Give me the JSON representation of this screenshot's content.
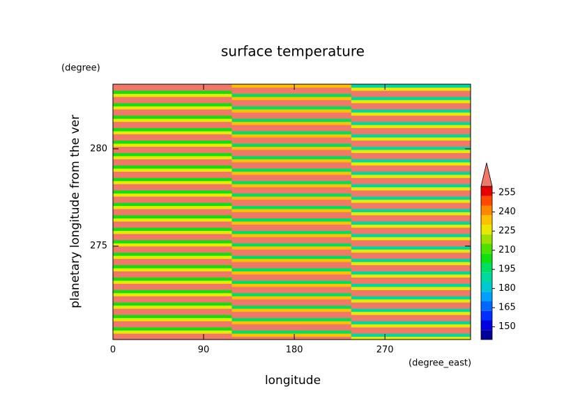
{
  "chart_data": {
    "type": "heatmap",
    "title": "surface temperature",
    "xlabel": "longitude",
    "xunit": "(degree_east)",
    "ylabel": "planetary longitude from the ver",
    "yunit": "(degree)",
    "xlim": [
      0,
      355
    ],
    "xticks": [
      0,
      90,
      180,
      270
    ],
    "ylim": [
      270.2,
      283.32
    ],
    "yticks": [
      275,
      280
    ],
    "x": [
      59,
      177,
      296
    ],
    "y": [
      270.28,
      270.44,
      270.6,
      270.76,
      270.92,
      271.08,
      271.24,
      271.4,
      271.56,
      271.72,
      271.88,
      272.04,
      272.2,
      272.36,
      272.52,
      272.68,
      272.84,
      273,
      273.16,
      273.32,
      273.48,
      273.64,
      273.8,
      273.96,
      274.12,
      274.28,
      274.44,
      274.6,
      274.76,
      274.92,
      275.08,
      275.24,
      275.4,
      275.56,
      275.72,
      275.88,
      276.04,
      276.2,
      276.36,
      276.52,
      276.68,
      276.84,
      277,
      277.16,
      277.32,
      277.48,
      277.64,
      277.8,
      277.96,
      278.12,
      278.28,
      278.44,
      278.6,
      278.76,
      278.92,
      279.08,
      279.24,
      279.4,
      279.56,
      279.72,
      279.88,
      280.04,
      280.2,
      280.36,
      280.52,
      280.68,
      280.84,
      281,
      281.16,
      281.32,
      281.48,
      281.64,
      281.8,
      281.96,
      282.12,
      282.28,
      282.44,
      282.6,
      282.76,
      282.92,
      283.08,
      283.24
    ],
    "z": [
      [
        265,
        262,
        225
      ],
      [
        265,
        230,
        185
      ],
      [
        228,
        198,
        265
      ],
      [
        205,
        265,
        262
      ],
      [
        265,
        262,
        225
      ],
      [
        265,
        230,
        185
      ],
      [
        228,
        198,
        265
      ],
      [
        205,
        265,
        262
      ],
      [
        265,
        262,
        225
      ],
      [
        265,
        230,
        185
      ],
      [
        228,
        198,
        265
      ],
      [
        205,
        265,
        262
      ],
      [
        265,
        262,
        225
      ],
      [
        265,
        230,
        185
      ],
      [
        228,
        198,
        265
      ],
      [
        205,
        265,
        262
      ],
      [
        265,
        262,
        225
      ],
      [
        265,
        230,
        185
      ],
      [
        228,
        198,
        265
      ],
      [
        205,
        265,
        262
      ],
      [
        265,
        262,
        225
      ],
      [
        265,
        230,
        185
      ],
      [
        228,
        198,
        265
      ],
      [
        205,
        265,
        262
      ],
      [
        265,
        262,
        225
      ],
      [
        265,
        230,
        185
      ],
      [
        228,
        198,
        265
      ],
      [
        205,
        265,
        262
      ],
      [
        265,
        262,
        225
      ],
      [
        265,
        230,
        185
      ],
      [
        228,
        198,
        265
      ],
      [
        205,
        265,
        262
      ],
      [
        265,
        262,
        225
      ],
      [
        265,
        230,
        185
      ],
      [
        228,
        198,
        265
      ],
      [
        205,
        265,
        262
      ],
      [
        265,
        262,
        225
      ],
      [
        265,
        230,
        185
      ],
      [
        228,
        198,
        265
      ],
      [
        205,
        265,
        262
      ],
      [
        265,
        262,
        225
      ],
      [
        265,
        230,
        185
      ],
      [
        228,
        198,
        265
      ],
      [
        205,
        265,
        262
      ],
      [
        265,
        262,
        225
      ],
      [
        265,
        230,
        185
      ],
      [
        228,
        198,
        265
      ],
      [
        205,
        265,
        262
      ],
      [
        265,
        262,
        225
      ],
      [
        265,
        230,
        185
      ],
      [
        228,
        198,
        265
      ],
      [
        205,
        265,
        262
      ],
      [
        265,
        262,
        225
      ],
      [
        265,
        230,
        185
      ],
      [
        228,
        198,
        265
      ],
      [
        205,
        265,
        262
      ],
      [
        265,
        262,
        225
      ],
      [
        265,
        230,
        185
      ],
      [
        228,
        198,
        265
      ],
      [
        205,
        265,
        262
      ],
      [
        265,
        262,
        225
      ],
      [
        265,
        230,
        185
      ],
      [
        228,
        198,
        265
      ],
      [
        205,
        265,
        262
      ],
      [
        265,
        262,
        225
      ],
      [
        265,
        230,
        185
      ],
      [
        228,
        198,
        265
      ],
      [
        205,
        265,
        262
      ],
      [
        265,
        262,
        225
      ],
      [
        265,
        230,
        185
      ],
      [
        228,
        198,
        265
      ],
      [
        205,
        265,
        262
      ],
      [
        265,
        262,
        225
      ],
      [
        265,
        230,
        185
      ],
      [
        228,
        198,
        265
      ],
      [
        205,
        265,
        262
      ],
      [
        265,
        262,
        225
      ],
      [
        265,
        230,
        185
      ],
      [
        228,
        198,
        265
      ],
      [
        205,
        265,
        262
      ],
      [
        265,
        262,
        225
      ],
      [
        265,
        230,
        185
      ]
    ],
    "colorbar": {
      "lim": [
        140,
        260
      ],
      "ticks": [
        150,
        165,
        180,
        195,
        210,
        225,
        240,
        255
      ],
      "levels": [
        140,
        147.5,
        155,
        162.5,
        170,
        177.5,
        185,
        192.5,
        200,
        207.5,
        215,
        222.5,
        230,
        237.5,
        245,
        252.5,
        260
      ],
      "colors": [
        "#00009a",
        "#0000e0",
        "#0030ff",
        "#0068ff",
        "#00a0ff",
        "#00c8d0",
        "#00d8a0",
        "#00e060",
        "#10e010",
        "#50e000",
        "#a0e000",
        "#e8e800",
        "#ffc000",
        "#ff8800",
        "#ff4800",
        "#e80000"
      ],
      "over_color": "#f07868"
    }
  }
}
